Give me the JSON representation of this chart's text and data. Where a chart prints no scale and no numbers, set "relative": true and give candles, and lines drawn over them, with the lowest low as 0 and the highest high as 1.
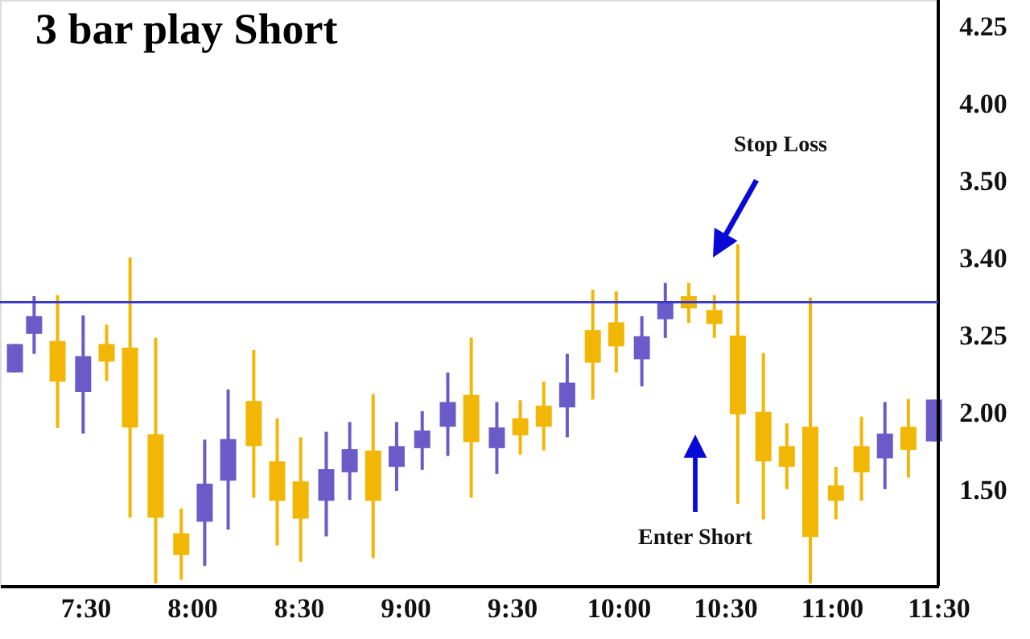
{
  "chart_data": {
    "type": "candlestick",
    "title": "3 bar play Short",
    "relative": true,
    "x": [
      7.17,
      7.26,
      7.37,
      7.49,
      7.6,
      7.71,
      7.83,
      7.95,
      8.06,
      8.17,
      8.29,
      8.4,
      8.51,
      8.63,
      8.74,
      8.85,
      8.96,
      9.08,
      9.2,
      9.31,
      9.43,
      9.54,
      9.65,
      9.76,
      9.88,
      9.99,
      10.11,
      10.22,
      10.33,
      10.45,
      10.56,
      10.68,
      10.79,
      10.9,
      11.02,
      11.14,
      11.25,
      11.36,
      11.48
    ],
    "ohlc": [
      [
        0.622,
        0.706,
        0.622,
        0.706
      ],
      [
        0.736,
        0.847,
        0.677,
        0.788
      ],
      [
        0.715,
        0.85,
        0.458,
        0.595
      ],
      [
        0.565,
        0.79,
        0.442,
        0.67
      ],
      [
        0.706,
        0.763,
        0.597,
        0.654
      ],
      [
        0.695,
        0.961,
        0.194,
        0.46
      ],
      [
        0.44,
        0.724,
        0.0,
        0.194
      ],
      [
        0.148,
        0.221,
        0.011,
        0.084
      ],
      [
        0.182,
        0.424,
        0.052,
        0.294
      ],
      [
        0.303,
        0.572,
        0.159,
        0.426
      ],
      [
        0.538,
        0.688,
        0.253,
        0.405
      ],
      [
        0.36,
        0.487,
        0.112,
        0.244
      ],
      [
        0.301,
        0.431,
        0.064,
        0.191
      ],
      [
        0.244,
        0.447,
        0.139,
        0.337
      ],
      [
        0.328,
        0.476,
        0.246,
        0.396
      ],
      [
        0.392,
        0.558,
        0.075,
        0.244
      ],
      [
        0.344,
        0.476,
        0.273,
        0.405
      ],
      [
        0.399,
        0.508,
        0.335,
        0.451
      ],
      [
        0.462,
        0.622,
        0.376,
        0.535
      ],
      [
        0.556,
        0.724,
        0.253,
        0.417
      ],
      [
        0.399,
        0.535,
        0.323,
        0.46
      ],
      [
        0.487,
        0.54,
        0.38,
        0.437
      ],
      [
        0.524,
        0.595,
        0.392,
        0.462
      ],
      [
        0.519,
        0.677,
        0.431,
        0.592
      ],
      [
        0.747,
        0.866,
        0.542,
        0.651
      ],
      [
        0.77,
        0.861,
        0.622,
        0.699
      ],
      [
        0.661,
        0.788,
        0.581,
        0.729
      ],
      [
        0.779,
        0.886,
        0.724,
        0.827
      ],
      [
        0.847,
        0.886,
        0.768,
        0.811
      ],
      [
        0.806,
        0.85,
        0.724,
        0.765
      ],
      [
        0.731,
        1.0,
        0.235,
        0.499
      ],
      [
        0.506,
        0.679,
        0.189,
        0.36
      ],
      [
        0.405,
        0.472,
        0.278,
        0.344
      ],
      [
        0.462,
        0.843,
        0.0,
        0.137
      ],
      [
        0.289,
        0.344,
        0.189,
        0.244
      ],
      [
        0.405,
        0.492,
        0.244,
        0.328
      ],
      [
        0.369,
        0.535,
        0.278,
        0.442
      ],
      [
        0.462,
        0.544,
        0.312,
        0.394
      ],
      [
        0.419,
        0.542,
        0.419,
        0.542
      ]
    ],
    "colors": [
      "#6b5bc8",
      "#6b5bc8",
      "#f2b705",
      "#6b5bc8",
      "#f2b705",
      "#f2b705",
      "#f2b705",
      "#f2b705",
      "#6b5bc8",
      "#6b5bc8",
      "#f2b705",
      "#f2b705",
      "#f2b705",
      "#6b5bc8",
      "#6b5bc8",
      "#f2b705",
      "#6b5bc8",
      "#6b5bc8",
      "#6b5bc8",
      "#f2b705",
      "#6b5bc8",
      "#f2b705",
      "#f2b705",
      "#6b5bc8",
      "#f2b705",
      "#f2b705",
      "#6b5bc8",
      "#6b5bc8",
      "#f2b705",
      "#f2b705",
      "#f2b705",
      "#f2b705",
      "#f2b705",
      "#f2b705",
      "#f2b705",
      "#f2b705",
      "#6b5bc8",
      "#f2b705",
      "#6b5bc8"
    ],
    "xlim": [
      7.1,
      11.5
    ],
    "xticks": [
      {
        "value": 7.5,
        "label": "7:30"
      },
      {
        "value": 8,
        "label": "8:00"
      },
      {
        "value": 8.5,
        "label": "8:30"
      },
      {
        "value": 9,
        "label": "9:00"
      },
      {
        "value": 9.5,
        "label": "9:30"
      },
      {
        "value": 10,
        "label": "10:00"
      },
      {
        "value": 10.5,
        "label": "10:30"
      },
      {
        "value": 11,
        "label": "11:00"
      },
      {
        "value": 11.5,
        "label": "11:30"
      }
    ],
    "ref_lines": [
      {
        "axis": "y",
        "value": 0.829,
        "color": "#3a3ac8"
      }
    ],
    "annotations": [
      "Stop Loss",
      "Enter Short",
      "4.25",
      "4.00",
      "3.50",
      "3.40",
      "3.25",
      "2.00",
      "1.50"
    ],
    "grid": false
  }
}
